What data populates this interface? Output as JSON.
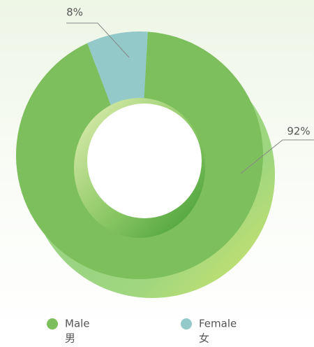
{
  "chart_data": {
    "type": "donut",
    "categories": [
      "Male",
      "Female"
    ],
    "categories_secondary": [
      "男",
      "女"
    ],
    "values": [
      92,
      8
    ],
    "value_labels": [
      "92%",
      "8%"
    ],
    "colors": [
      "#7dbf5c",
      "#93c9c8"
    ]
  }
}
